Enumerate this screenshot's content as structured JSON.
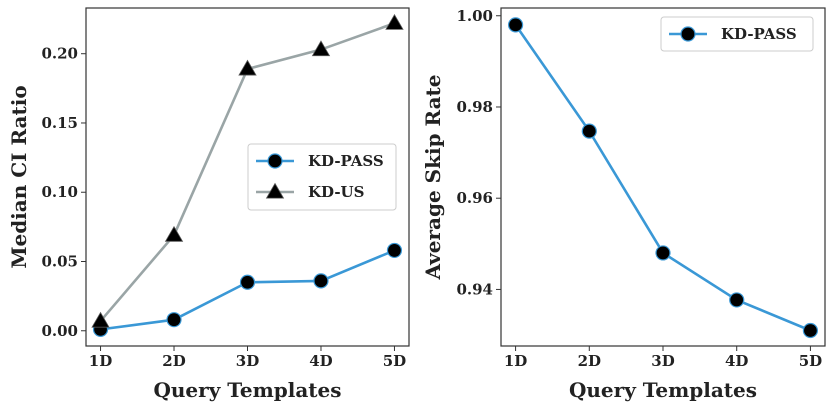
{
  "colors": {
    "kdpass": "#3a98d6",
    "kdus": "#9aa5a6",
    "marker": "#000000",
    "frame": "#333333"
  },
  "chart_data": [
    {
      "type": "line",
      "title": "",
      "xlabel": "Query Templates",
      "ylabel": "Median CI Ratio",
      "categories": [
        "1D",
        "2D",
        "3D",
        "4D",
        "5D"
      ],
      "ylim": [
        -0.011,
        0.233
      ],
      "yticks": [
        0.0,
        0.05,
        0.1,
        0.15,
        0.2
      ],
      "ytick_labels": [
        "0.00",
        "0.05",
        "0.10",
        "0.15",
        "0.20"
      ],
      "legend_position": "center-right",
      "series": [
        {
          "name": "KD-PASS",
          "marker": "circle",
          "values": [
            0.001,
            0.008,
            0.035,
            0.036,
            0.058
          ]
        },
        {
          "name": "KD-US",
          "marker": "triangle",
          "values": [
            0.007,
            0.069,
            0.189,
            0.203,
            0.222
          ]
        }
      ]
    },
    {
      "type": "line",
      "title": "",
      "xlabel": "Query Templates",
      "ylabel": "Average Skip Rate",
      "categories": [
        "1D",
        "2D",
        "3D",
        "4D",
        "5D"
      ],
      "ylim": [
        0.9276,
        1.0017
      ],
      "yticks": [
        0.94,
        0.96,
        0.98,
        1.0
      ],
      "ytick_labels": [
        "0.94",
        "0.96",
        "0.98",
        "1.00"
      ],
      "legend_position": "top-right",
      "series": [
        {
          "name": "KD-PASS",
          "marker": "circle",
          "values": [
            0.998,
            0.9747,
            0.948,
            0.9377,
            0.931
          ]
        }
      ]
    }
  ]
}
